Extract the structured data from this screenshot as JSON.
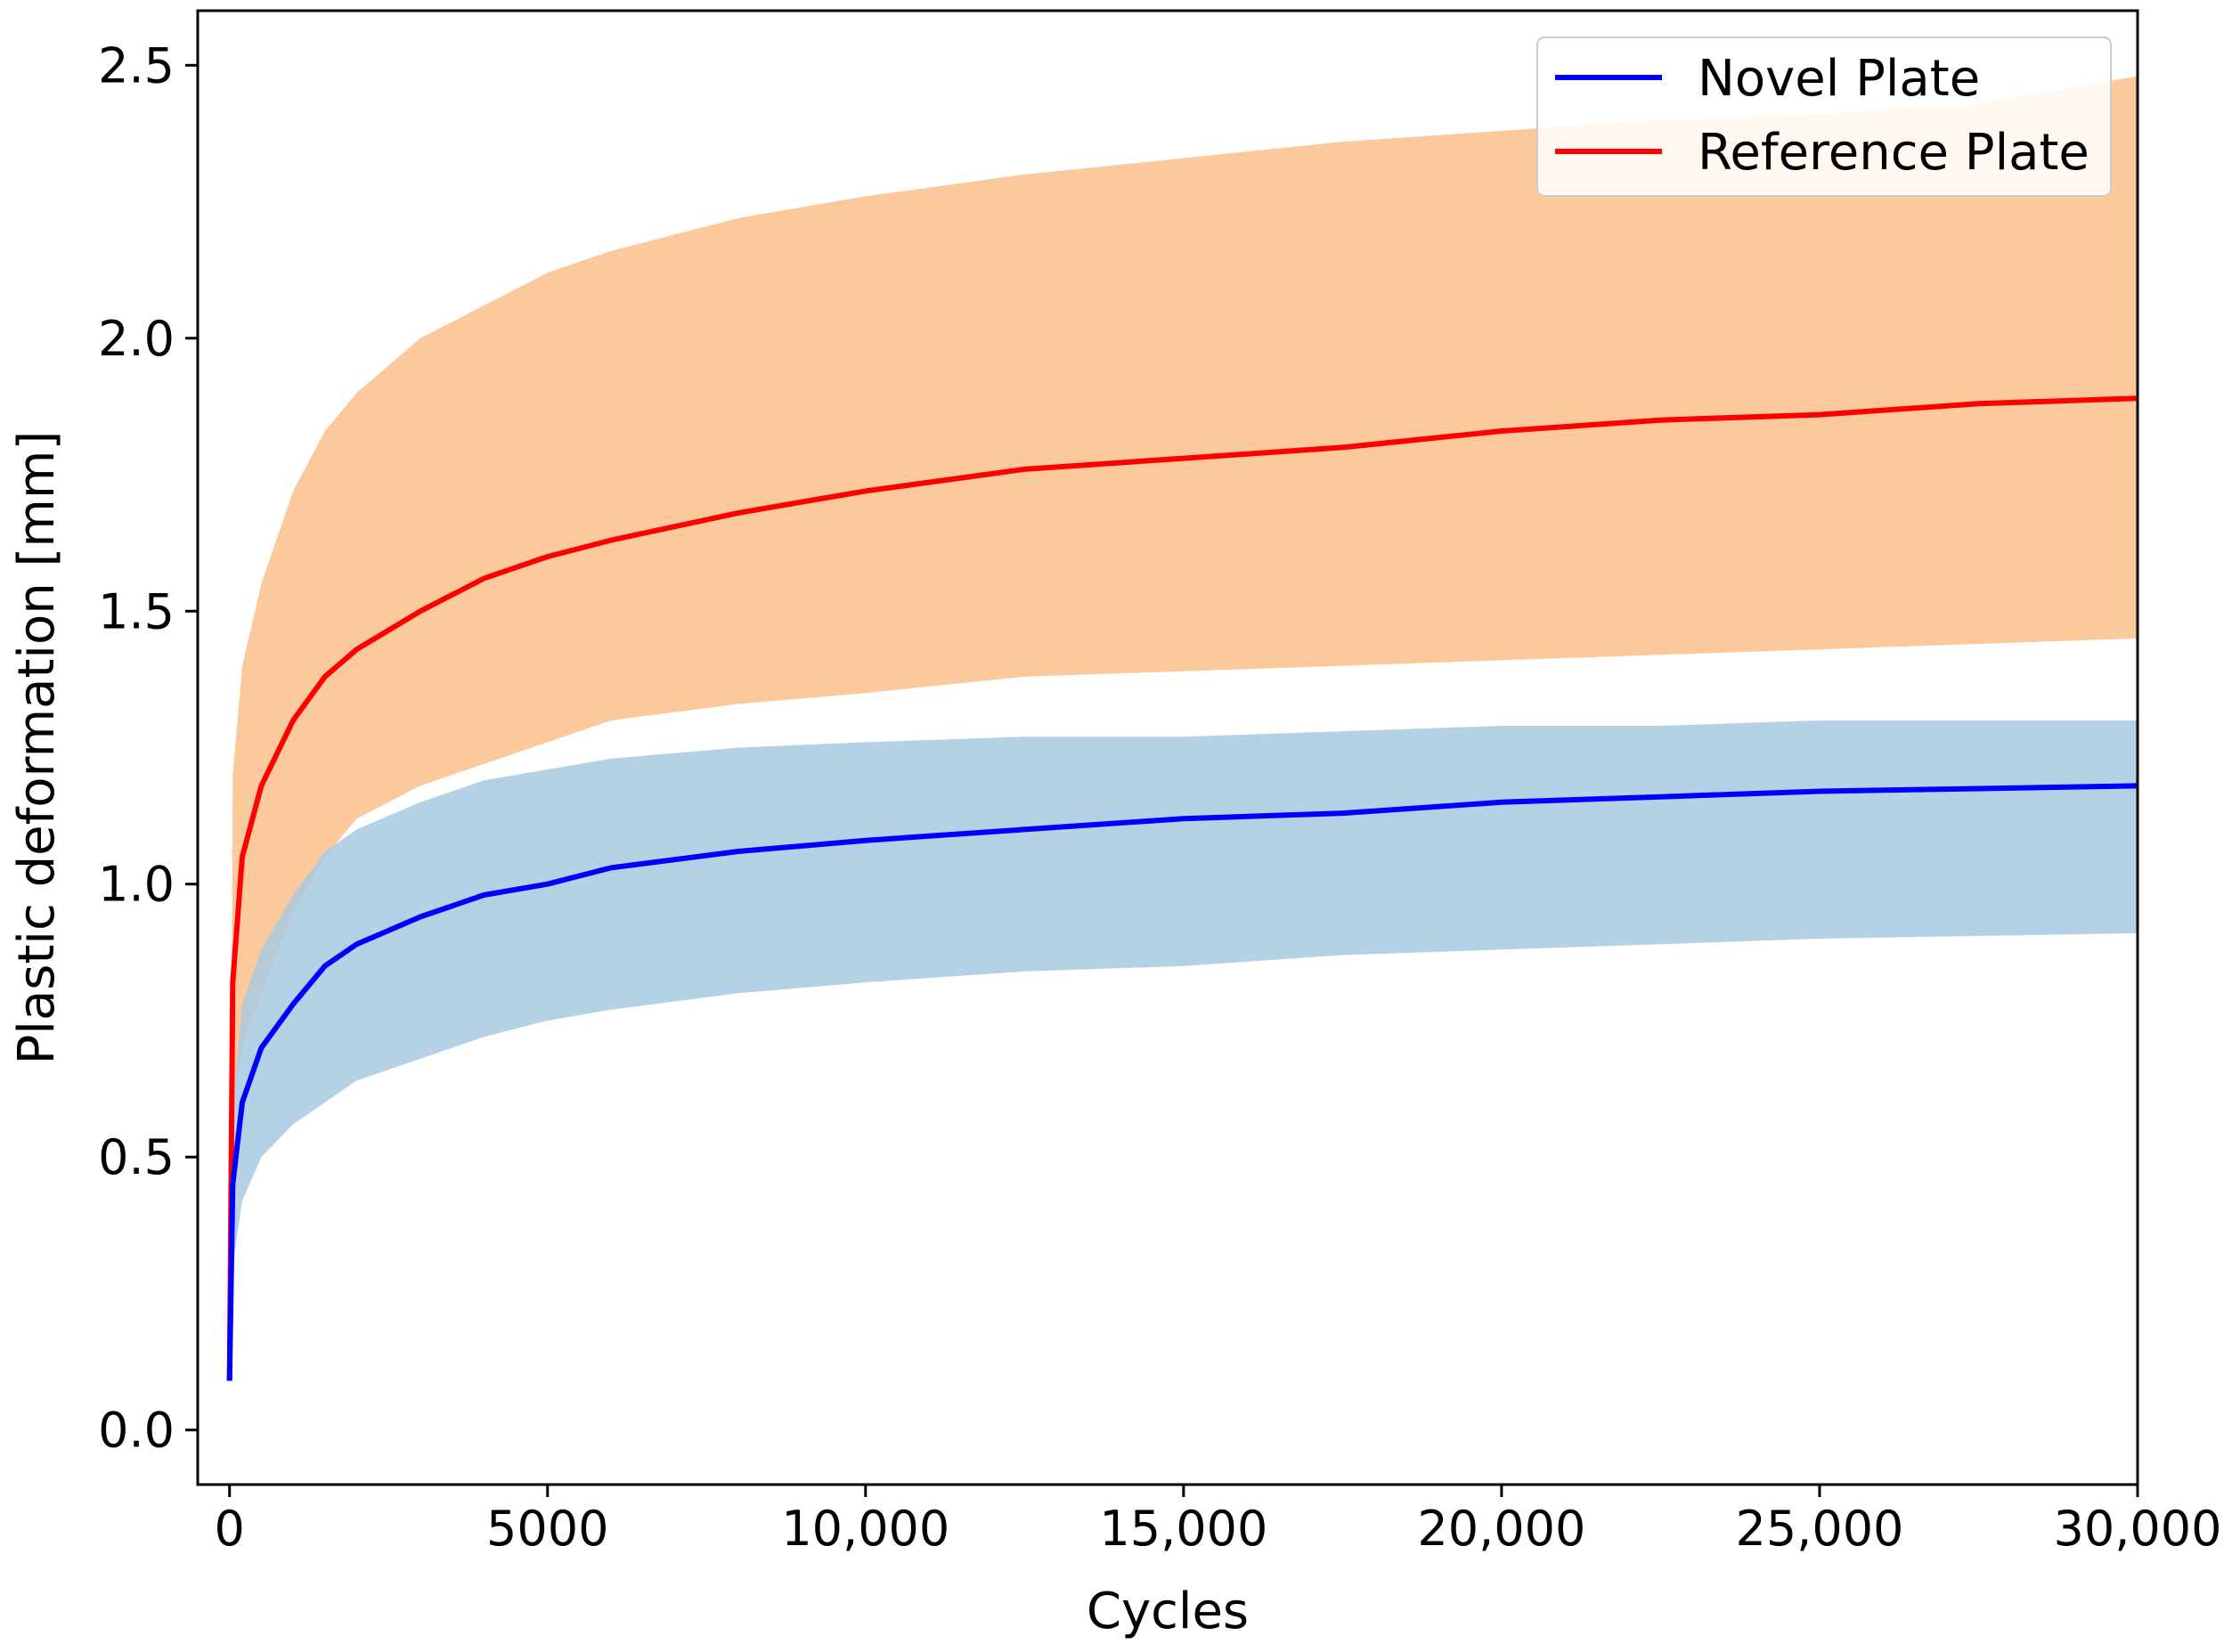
{
  "chart_data": {
    "type": "line",
    "xlabel": "Cycles",
    "ylabel": "Plastic deformation [mm]",
    "xlim": [
      -500,
      30000
    ],
    "ylim": [
      -0.1,
      2.6
    ],
    "grid": false,
    "legend_placement": "top-right",
    "xticks": [
      {
        "value": 0,
        "label": "0"
      },
      {
        "value": 5000,
        "label": "5000"
      },
      {
        "value": 10000,
        "label": "10,000"
      },
      {
        "value": 15000,
        "label": "15,000"
      },
      {
        "value": 20000,
        "label": "20,000"
      },
      {
        "value": 25000,
        "label": "25,000"
      },
      {
        "value": 30000,
        "label": "30,000"
      }
    ],
    "yticks": [
      {
        "value": 0.0,
        "label": "0.0"
      },
      {
        "value": 0.5,
        "label": "0.5"
      },
      {
        "value": 1.0,
        "label": "1.0"
      },
      {
        "value": 1.5,
        "label": "1.5"
      },
      {
        "value": 2.0,
        "label": "2.0"
      },
      {
        "value": 2.5,
        "label": "2.5"
      }
    ],
    "x": [
      0,
      50,
      200,
      500,
      1000,
      1500,
      2000,
      3000,
      4000,
      5000,
      6000,
      8000,
      10000,
      12500,
      15000,
      17500,
      20000,
      22500,
      25000,
      27500,
      30000
    ],
    "series": [
      {
        "name": "Novel Plate",
        "color": "#0000ff",
        "band_color": "#a8c9e1",
        "values": [
          0.09,
          0.45,
          0.6,
          0.7,
          0.78,
          0.85,
          0.89,
          0.94,
          0.98,
          1.0,
          1.03,
          1.06,
          1.08,
          1.1,
          1.12,
          1.13,
          1.15,
          1.16,
          1.17,
          1.175,
          1.18
        ],
        "lower": [
          0.09,
          0.3,
          0.42,
          0.5,
          0.56,
          0.6,
          0.64,
          0.68,
          0.72,
          0.75,
          0.77,
          0.8,
          0.82,
          0.84,
          0.85,
          0.87,
          0.88,
          0.89,
          0.9,
          0.905,
          0.91
        ],
        "upper": [
          0.09,
          0.6,
          0.78,
          0.88,
          0.98,
          1.06,
          1.1,
          1.15,
          1.19,
          1.21,
          1.23,
          1.25,
          1.26,
          1.27,
          1.27,
          1.28,
          1.29,
          1.29,
          1.3,
          1.3,
          1.3
        ]
      },
      {
        "name": "Reference Plate",
        "color": "#ff0000",
        "band_color": "#fbc99c",
        "values": [
          0.09,
          0.82,
          1.05,
          1.18,
          1.3,
          1.38,
          1.43,
          1.5,
          1.56,
          1.6,
          1.63,
          1.68,
          1.72,
          1.76,
          1.78,
          1.8,
          1.83,
          1.85,
          1.86,
          1.88,
          1.89
        ],
        "lower": [
          0.09,
          0.6,
          0.7,
          0.8,
          0.95,
          1.05,
          1.12,
          1.18,
          1.22,
          1.26,
          1.3,
          1.33,
          1.35,
          1.38,
          1.39,
          1.4,
          1.41,
          1.42,
          1.43,
          1.44,
          1.45
        ],
        "upper": [
          0.09,
          1.2,
          1.4,
          1.55,
          1.72,
          1.83,
          1.9,
          2.0,
          2.06,
          2.12,
          2.16,
          2.22,
          2.26,
          2.3,
          2.33,
          2.36,
          2.38,
          2.4,
          2.41,
          2.43,
          2.48
        ]
      }
    ]
  }
}
